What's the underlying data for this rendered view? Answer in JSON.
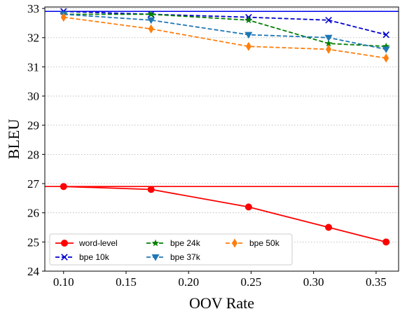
{
  "chart_data": {
    "type": "line",
    "xlabel": "OOV Rate",
    "ylabel": "BLEU",
    "xlim": [
      0.085,
      0.368
    ],
    "ylim": [
      24,
      33.05
    ],
    "xticks": [
      "0.10",
      "0.15",
      "0.20",
      "0.25",
      "0.30",
      "0.35"
    ],
    "yticks": [
      "24",
      "25",
      "26",
      "27",
      "28",
      "29",
      "30",
      "31",
      "32",
      "33"
    ],
    "grid": "horizontal dotted",
    "legend_placement": "lower-left",
    "reference_lines": [
      {
        "axis": "y",
        "value": 32.9,
        "color": "#0000ee"
      },
      {
        "axis": "y",
        "value": 26.9,
        "color": "#ff0000"
      }
    ],
    "series": [
      {
        "name": "word-level",
        "color": "#ff0000",
        "linestyle": "solid",
        "marker": "circle",
        "x": [
          0.1,
          0.17,
          0.248,
          0.312,
          0.358
        ],
        "y": [
          26.9,
          26.8,
          26.2,
          25.5,
          25.0
        ]
      },
      {
        "name": "bpe 10k",
        "color": "#0000d0",
        "linestyle": "dashed",
        "marker": "x",
        "x": [
          0.1,
          0.17,
          0.248,
          0.312,
          0.358
        ],
        "y": [
          32.9,
          32.8,
          32.7,
          32.6,
          32.1
        ]
      },
      {
        "name": "bpe 24k",
        "color": "#007f00",
        "linestyle": "dashed",
        "marker": "star",
        "x": [
          0.1,
          0.17,
          0.248,
          0.312,
          0.358
        ],
        "y": [
          32.8,
          32.8,
          32.6,
          31.8,
          31.7
        ]
      },
      {
        "name": "bpe 37k",
        "color": "#1f77b4",
        "linestyle": "dashed",
        "marker": "triangle-down",
        "x": [
          0.1,
          0.17,
          0.248,
          0.312,
          0.358
        ],
        "y": [
          32.8,
          32.6,
          32.1,
          32.0,
          31.6
        ]
      },
      {
        "name": "bpe 50k",
        "color": "#ff7f0e",
        "linestyle": "dashed",
        "marker": "diamond",
        "x": [
          0.1,
          0.17,
          0.248,
          0.312,
          0.358
        ],
        "y": [
          32.7,
          32.3,
          31.7,
          31.6,
          31.3
        ]
      }
    ]
  }
}
